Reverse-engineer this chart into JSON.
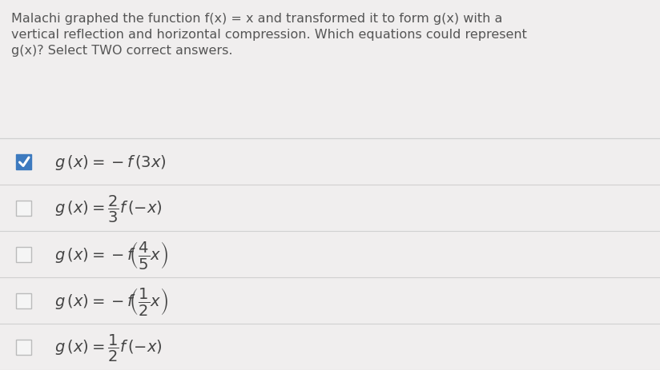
{
  "background_color": "#f0eeee",
  "prompt_text_lines": [
    "Malachi graphed the function f(x) = x and transformed it to form g(x) with a",
    "vertical reflection and horizontal compression. Which equations could represent",
    "g(x)? Select TWO correct answers."
  ],
  "options": [
    {
      "checked": true
    },
    {
      "checked": false
    },
    {
      "checked": false
    },
    {
      "checked": false
    },
    {
      "checked": false
    }
  ],
  "option_labels": [
    "$g\\,(x) = -f\\,(3x)$",
    "$g\\,(x) = \\dfrac{2}{3}f\\,(-x)$",
    "$g\\,(x) = -f\\!\\left(\\dfrac{4}{5}x\\right)$",
    "$g\\,(x) = -f\\!\\left(\\dfrac{1}{2}x\\right)$",
    "$g\\,(x) = \\dfrac{1}{2}f\\,(-x)$"
  ],
  "checkbox_color_checked": "#3d7abf",
  "checkbox_color_unchecked": "#f5f5f5",
  "checkbox_border_checked": "#3d7abf",
  "checkbox_border_unchecked": "#bbbbbb",
  "line_color": "#d0d0d0",
  "text_color": "#555555",
  "option_text_color": "#444444",
  "prompt_fontsize": 11.5,
  "option_fontsize": 14
}
